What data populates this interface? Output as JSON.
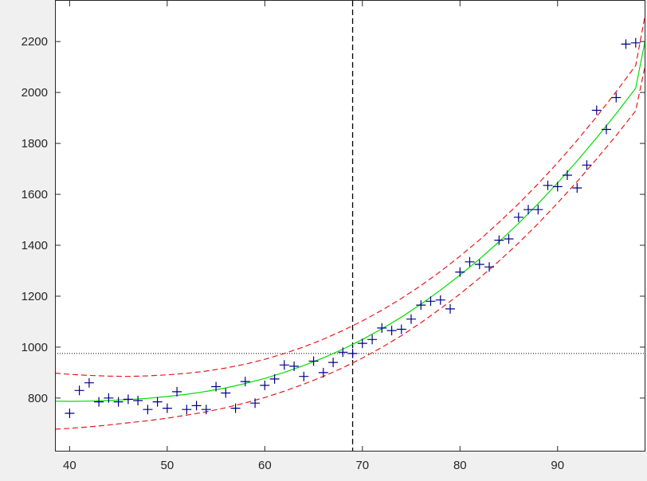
{
  "chart_data": {
    "type": "scatter",
    "xlim": [
      38.5,
      99
    ],
    "ylim": [
      590,
      2360
    ],
    "x_ticks": [
      40,
      50,
      60,
      70,
      80,
      90
    ],
    "y_ticks": [
      800,
      1000,
      1200,
      1400,
      1600,
      1800,
      2000,
      2200
    ],
    "grid": false,
    "legend": "none",
    "colors": {
      "points": "#00008b",
      "fit": "#00dd00",
      "bounds": "#e8191b",
      "crosshair": "#000000",
      "axes": "#262626",
      "plot_bg": "#ffffff",
      "figure_bg": "#f0f0f0"
    },
    "series": [
      {
        "type": "scatter",
        "marker": "plus",
        "x": [
          40,
          41,
          42,
          43,
          44,
          45,
          46,
          47,
          48,
          49,
          50,
          51,
          52,
          53,
          54,
          55,
          56,
          57,
          58,
          59,
          60,
          61,
          62,
          63,
          64,
          65,
          66,
          67,
          68,
          69,
          70,
          71,
          72,
          73,
          74,
          75,
          76,
          77,
          78,
          79,
          80,
          81,
          82,
          83,
          84,
          85,
          86,
          87,
          88,
          89,
          90,
          91,
          92,
          93,
          94,
          95,
          96,
          97,
          98
        ],
        "y": [
          740,
          830,
          860,
          785,
          800,
          785,
          795,
          790,
          755,
          785,
          760,
          825,
          755,
          770,
          755,
          845,
          820,
          760,
          865,
          780,
          850,
          875,
          930,
          925,
          885,
          945,
          900,
          940,
          980,
          975,
          1015,
          1030,
          1075,
          1065,
          1070,
          1110,
          1165,
          1180,
          1185,
          1150,
          1295,
          1335,
          1325,
          1315,
          1420,
          1425,
          1510,
          1540,
          1540,
          1635,
          1630,
          1675,
          1625,
          1715,
          1930,
          1855,
          1980,
          2190,
          2195
        ]
      },
      {
        "type": "line",
        "role": "fit",
        "x": [
          38.5,
          40,
          42,
          44,
          46,
          48,
          50,
          52,
          54,
          56,
          58,
          60,
          62,
          64,
          66,
          68,
          70,
          72,
          74,
          76,
          78,
          80,
          82,
          84,
          86,
          88,
          90,
          92,
          94,
          96,
          98,
          99
        ],
        "y": [
          788,
          787,
          788,
          790,
          794,
          799,
          806,
          815,
          826,
          840,
          857,
          877,
          901,
          928,
          958,
          992,
          1030,
          1072,
          1118,
          1169,
          1224,
          1283,
          1346,
          1414,
          1486,
          1563,
          1645,
          1731,
          1822,
          1917,
          2017,
          2210
        ]
      },
      {
        "type": "line",
        "role": "upper-bound",
        "style": "dashed",
        "x": [
          38.5,
          40,
          42,
          44,
          46,
          48,
          50,
          52,
          54,
          56,
          58,
          60,
          62,
          64,
          66,
          68,
          70,
          72,
          74,
          76,
          78,
          80,
          82,
          84,
          86,
          88,
          90,
          92,
          94,
          96,
          98,
          99
        ],
        "y": [
          898,
          893,
          889,
          886,
          885,
          887,
          891,
          897,
          906,
          918,
          933,
          952,
          975,
          1001,
          1031,
          1065,
          1103,
          1145,
          1191,
          1242,
          1297,
          1357,
          1421,
          1490,
          1563,
          1641,
          1724,
          1812,
          1905,
          2003,
          2106,
          2310
        ]
      },
      {
        "type": "line",
        "role": "lower-bound",
        "style": "dashed",
        "x": [
          38.5,
          40,
          42,
          44,
          46,
          48,
          50,
          52,
          54,
          56,
          58,
          60,
          62,
          64,
          66,
          68,
          70,
          72,
          74,
          76,
          78,
          80,
          82,
          84,
          86,
          88,
          90,
          92,
          94,
          96,
          98,
          99
        ],
        "y": [
          678,
          681,
          687,
          694,
          703,
          711,
          721,
          733,
          746,
          762,
          781,
          802,
          827,
          855,
          885,
          919,
          957,
          999,
          1045,
          1096,
          1151,
          1209,
          1271,
          1338,
          1409,
          1485,
          1566,
          1650,
          1739,
          1831,
          1928,
          2110
        ]
      }
    ],
    "crosshair": {
      "x": 69,
      "y": 975
    }
  }
}
